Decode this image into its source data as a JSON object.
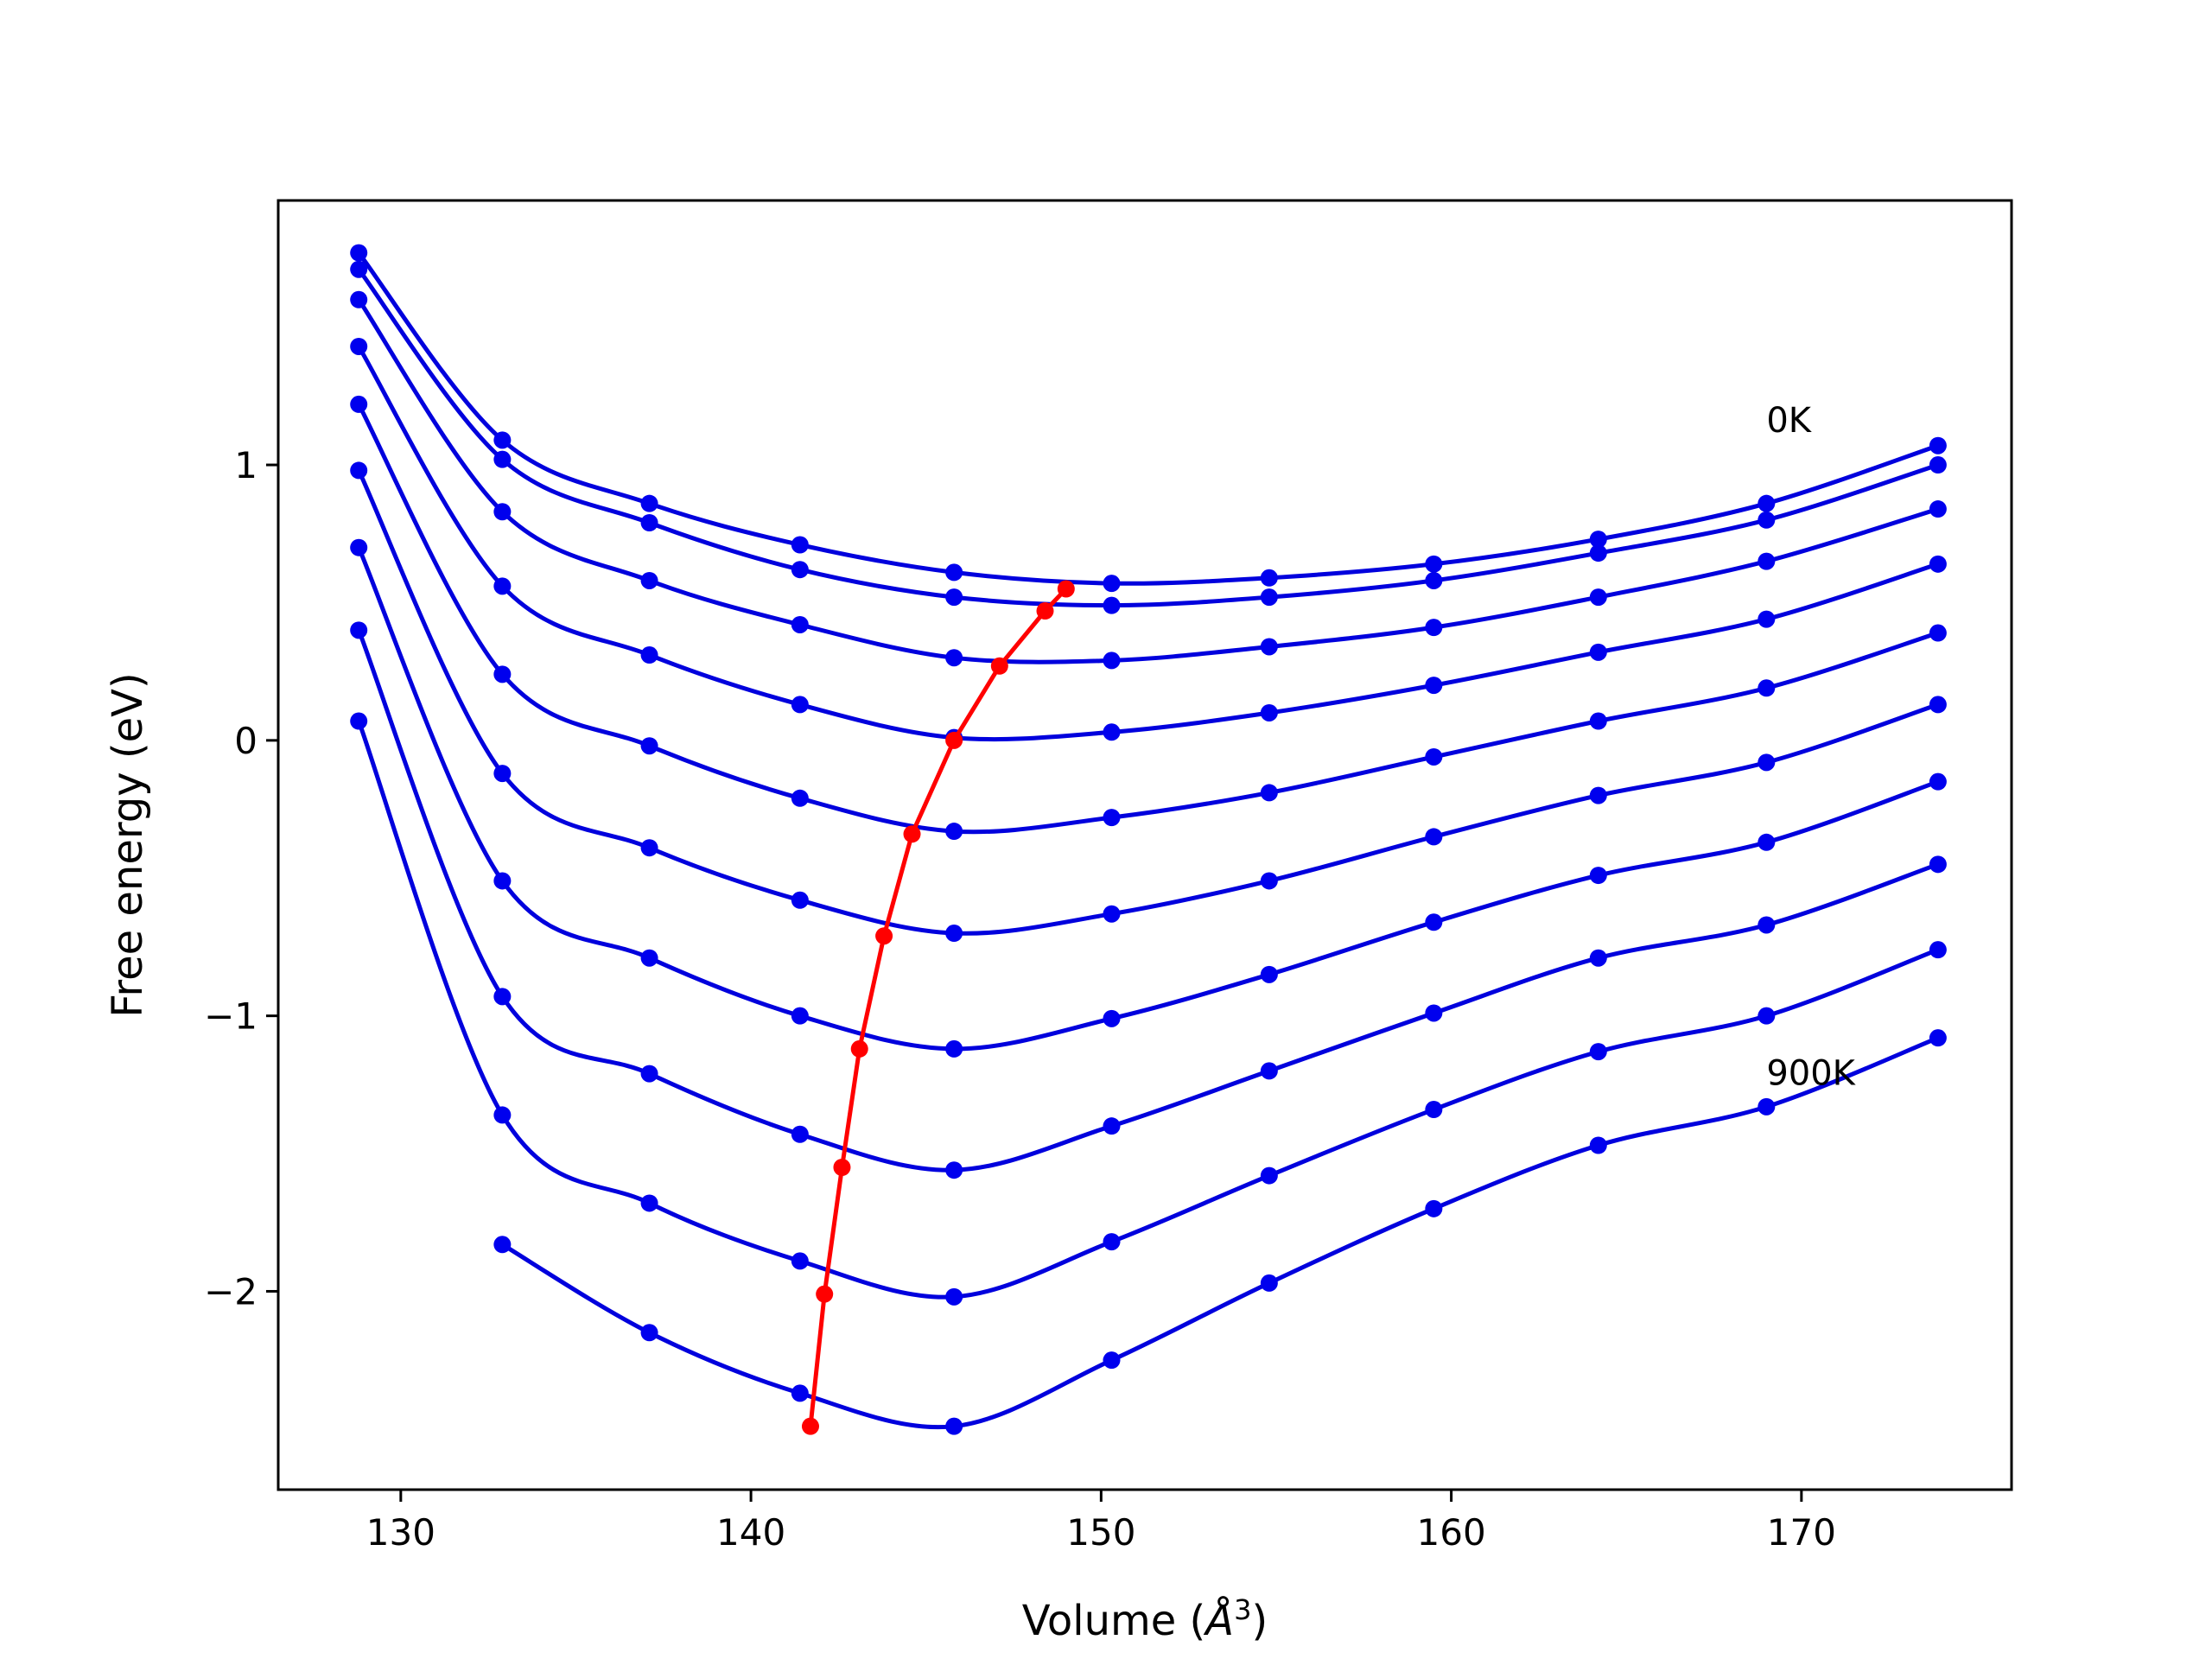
{
  "chart_data": {
    "type": "line",
    "title": "",
    "xlabel": "Volume (",
    "xlabel_symbol": "Å",
    "xlabel_exp": "3",
    "xlabel_close": ")",
    "ylabel": "Free energy (eV)",
    "xlim": [
      126.5,
      176
    ],
    "ylim": [
      -2.72,
      1.96
    ],
    "xticks": [
      130,
      140,
      150,
      160,
      170
    ],
    "xtick_labels": [
      "130",
      "140",
      "150",
      "160",
      "170"
    ],
    "yticks": [
      -2,
      -1,
      0,
      1
    ],
    "ytick_labels": [
      "−2",
      "−1",
      "0",
      "1"
    ],
    "grid": false,
    "annotations": [
      {
        "text": "0K",
        "x": 169.0,
        "y": 1.12
      },
      {
        "text": "900K",
        "x": 169.0,
        "y": -1.25
      }
    ],
    "colors": {
      "fit": "#0000dd",
      "points": "#0000ee",
      "minimum_path": "#ff0000"
    },
    "x_points": [
      128.8,
      132.9,
      137.1,
      141.4,
      145.8,
      150.3,
      154.8,
      159.5,
      164.2,
      169.0,
      173.9
    ],
    "series": [
      {
        "values": [
          1.77,
          1.09,
          0.86,
          0.71,
          0.61,
          0.57,
          0.59,
          0.64,
          0.73,
          0.86,
          1.07
        ]
      },
      {
        "values": [
          1.71,
          1.02,
          0.79,
          0.62,
          0.52,
          0.49,
          0.52,
          0.58,
          0.68,
          0.8,
          1.0
        ]
      },
      {
        "values": [
          1.6,
          0.83,
          0.58,
          0.42,
          0.3,
          0.29,
          0.34,
          0.41,
          0.52,
          0.65,
          0.84
        ]
      },
      {
        "values": [
          1.43,
          0.56,
          0.31,
          0.13,
          0.01,
          0.03,
          0.1,
          0.2,
          0.32,
          0.44,
          0.64
        ]
      },
      {
        "values": [
          1.22,
          0.24,
          -0.02,
          -0.21,
          -0.33,
          -0.28,
          -0.19,
          -0.06,
          0.07,
          0.19,
          0.39
        ]
      },
      {
        "values": [
          0.98,
          -0.12,
          -0.39,
          -0.58,
          -0.7,
          -0.63,
          -0.51,
          -0.35,
          -0.2,
          -0.08,
          0.13
        ]
      },
      {
        "values": [
          0.7,
          -0.51,
          -0.79,
          -1.0,
          -1.12,
          -1.01,
          -0.85,
          -0.66,
          -0.49,
          -0.37,
          -0.15
        ]
      },
      {
        "values": [
          0.4,
          -0.93,
          -1.21,
          -1.43,
          -1.56,
          -1.4,
          -1.2,
          -0.99,
          -0.79,
          -0.67,
          -0.45
        ]
      },
      {
        "values": [
          0.07,
          -1.36,
          -1.68,
          -1.89,
          -2.02,
          -1.82,
          -1.58,
          -1.34,
          -1.13,
          -1.0,
          -0.76
        ]
      },
      {
        "values": [
          null,
          -1.83,
          -2.15,
          -2.37,
          -2.49,
          -2.25,
          -1.97,
          -1.7,
          -1.47,
          -1.33,
          -1.08
        ]
      }
    ],
    "minimum_path": {
      "x": [
        141.7,
        142.1,
        142.6,
        143.1,
        143.8,
        144.6,
        145.8,
        147.1,
        148.4,
        149.0
      ],
      "y": [
        -2.49,
        -2.01,
        -1.55,
        -1.12,
        -0.71,
        -0.34,
        0.0,
        0.27,
        0.47,
        0.55
      ]
    }
  }
}
